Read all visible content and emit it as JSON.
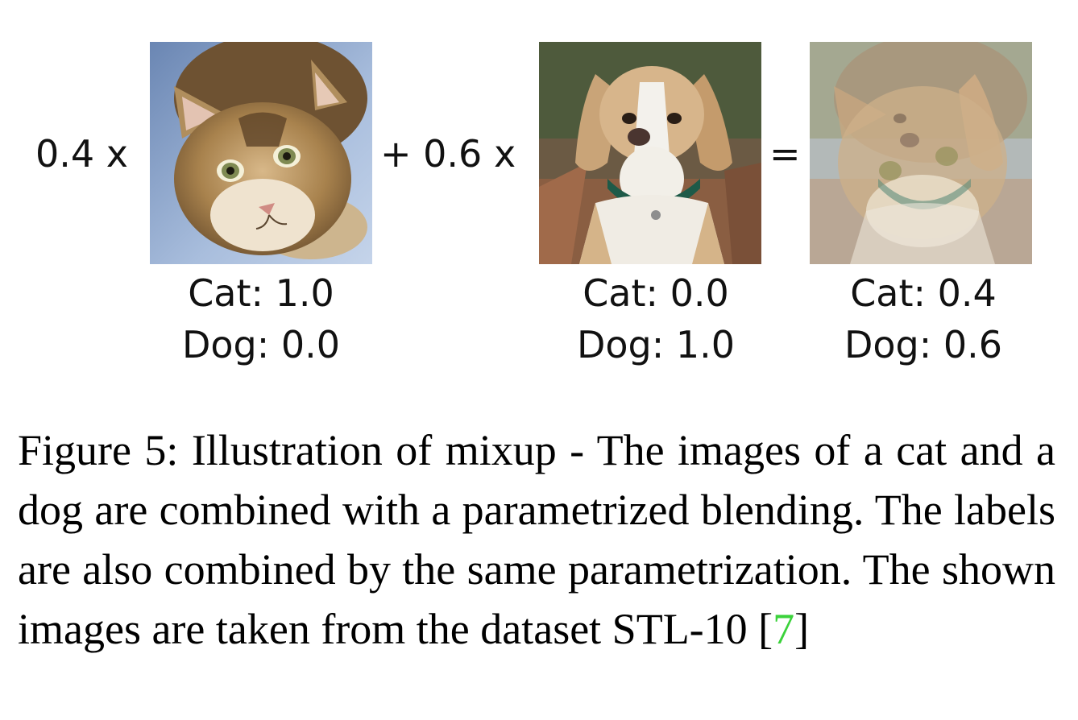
{
  "figure": {
    "coef_1": "0.4 x",
    "coef_2": "+ 0.6 x",
    "equals": "=",
    "images": [
      {
        "name": "cat",
        "label_cat": "Cat: 1.0",
        "label_dog": "Dog: 0.0"
      },
      {
        "name": "dog",
        "label_cat": "Cat: 0.0",
        "label_dog": "Dog: 1.0"
      },
      {
        "name": "mixed",
        "label_cat": "Cat: 0.4",
        "label_dog": "Dog: 0.6"
      }
    ]
  },
  "caption": {
    "text": "Figure 5: Illustration of mixup - The images of a cat and a dog are combined with a parametrized blending. The labels are also combined by the same parametrization. The shown images are taken from the dataset STL-10 [",
    "citation": "7",
    "end": "]"
  }
}
